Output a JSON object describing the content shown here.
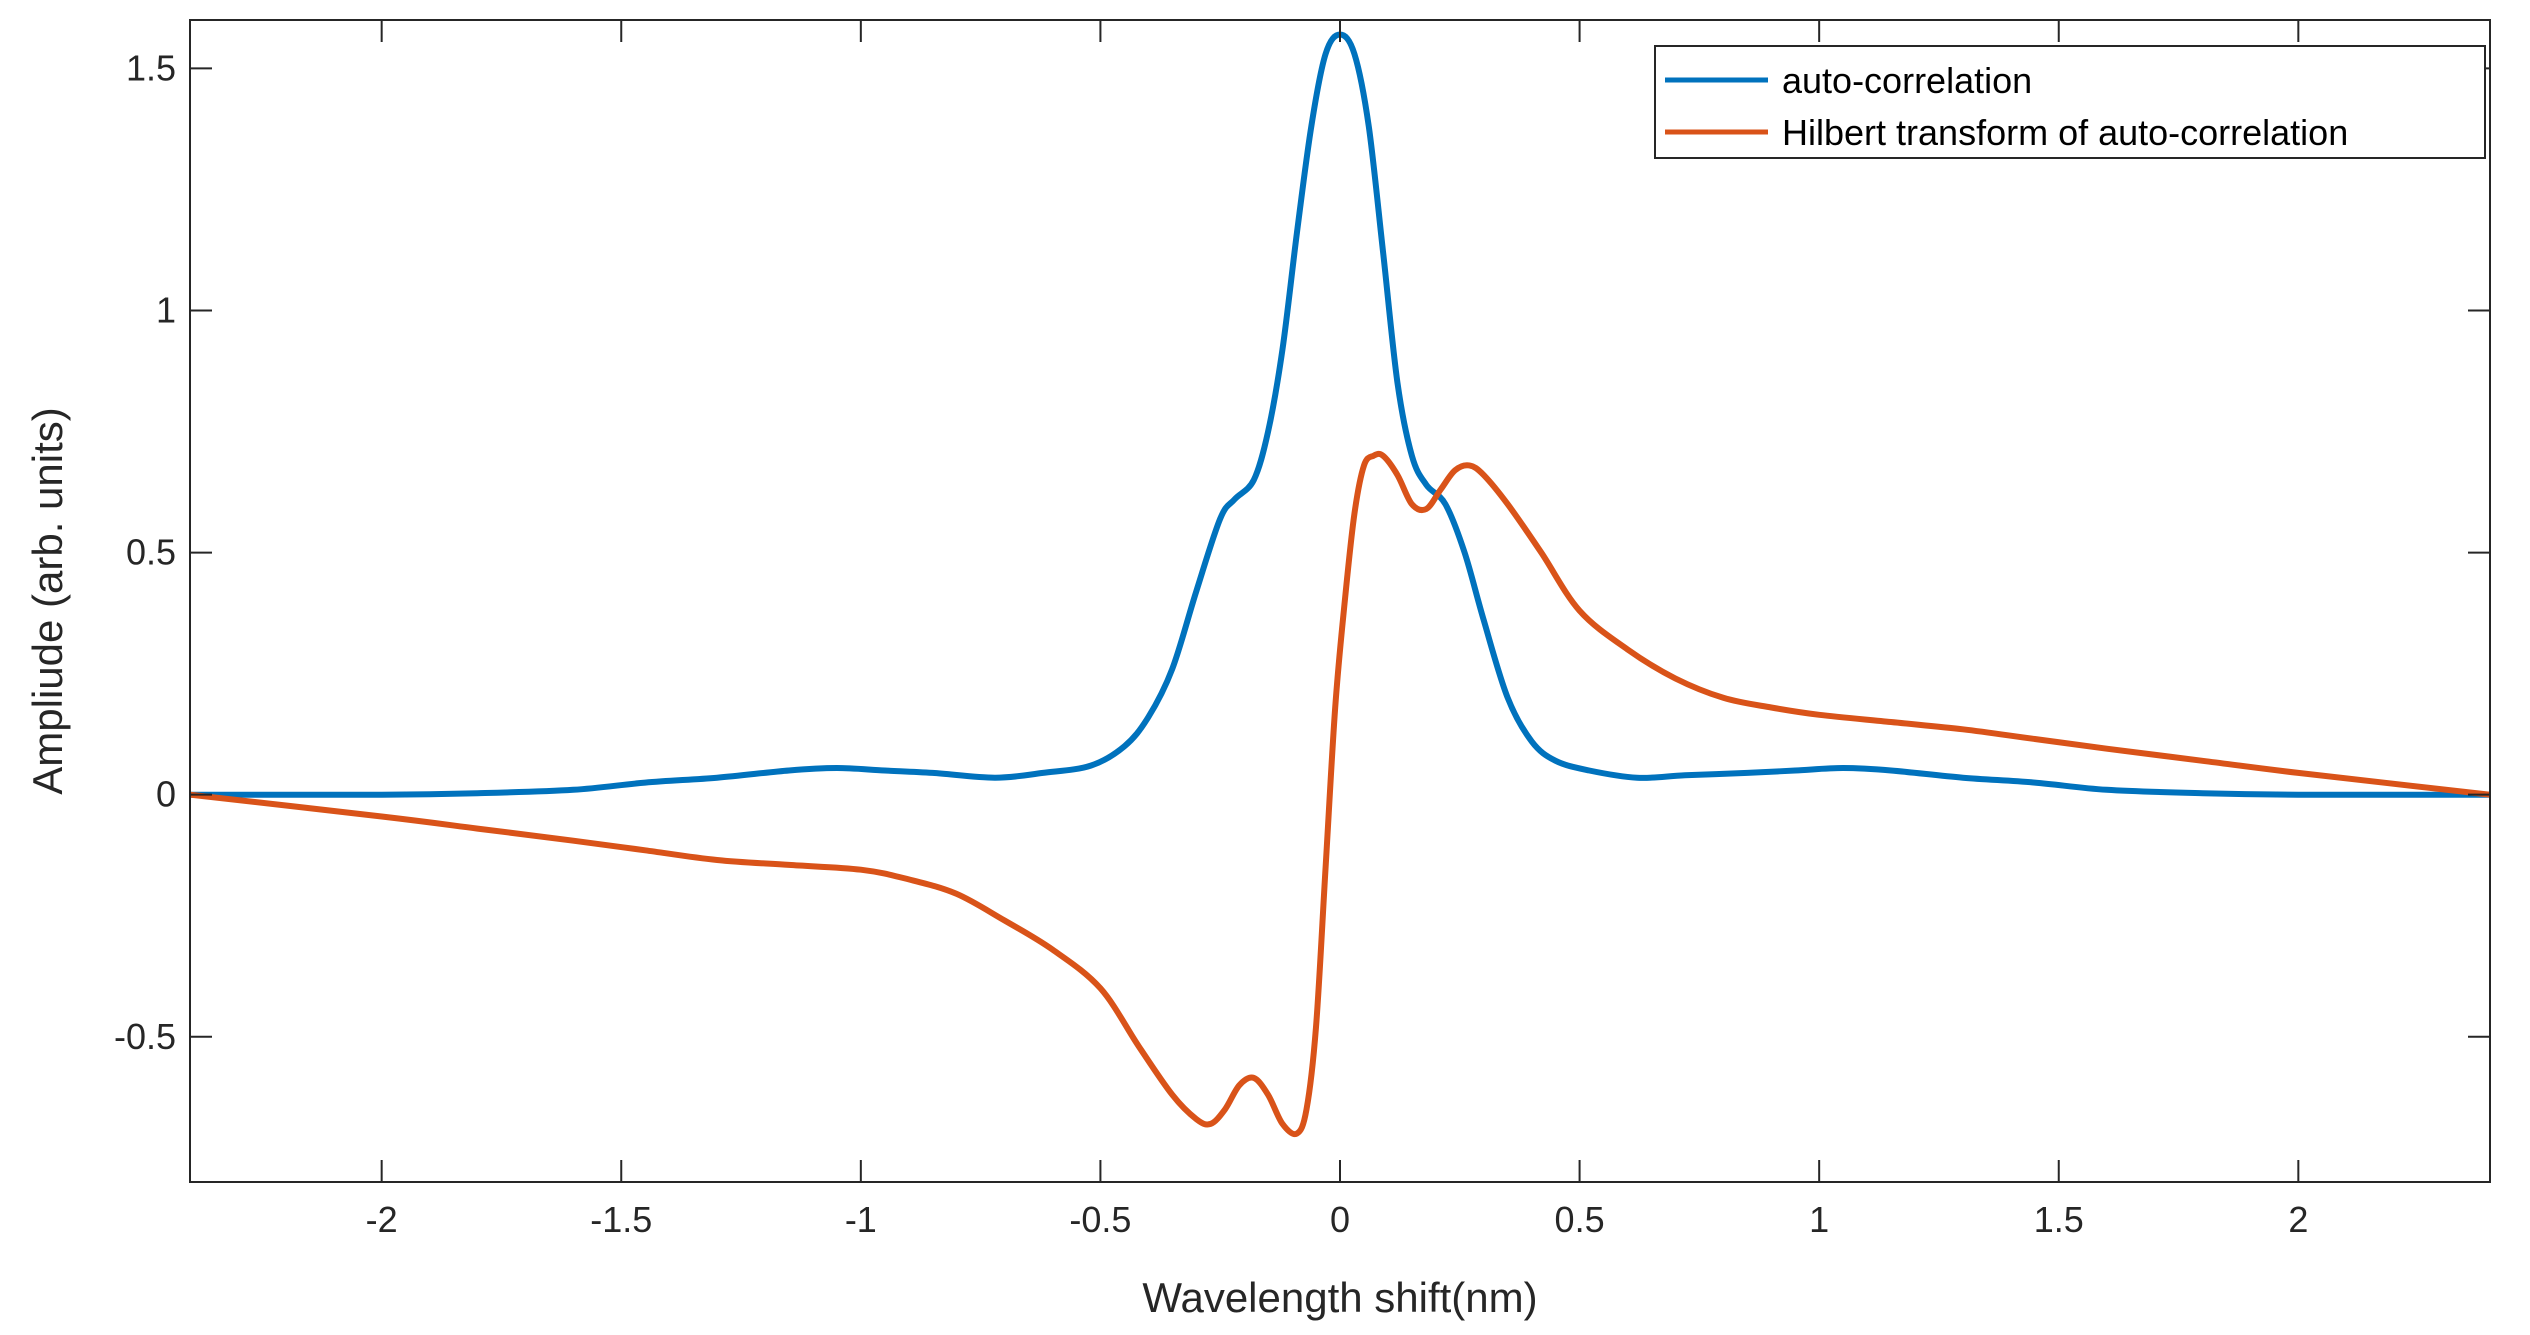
{
  "chart_data": {
    "type": "line",
    "title": "",
    "xlabel": "Wavelength shift(nm)",
    "ylabel": "Ampliude (arb. units)",
    "xlim": [
      -2.4,
      2.4
    ],
    "ylim": [
      -0.8,
      1.6
    ],
    "xticks": [
      -2,
      -1.5,
      -1,
      -0.5,
      0,
      0.5,
      1,
      1.5,
      2
    ],
    "xtick_labels": [
      "-2",
      "-1.5",
      "-1",
      "-0.5",
      "0",
      "0.5",
      "1",
      "1.5",
      "2"
    ],
    "yticks": [
      -0.5,
      0,
      0.5,
      1,
      1.5
    ],
    "ytick_labels": [
      "-0.5",
      "0",
      "0.5",
      "1",
      "1.5"
    ],
    "grid": false,
    "legend_position": "top-right",
    "series": [
      {
        "name": "auto-correlation",
        "color": "#0072BD",
        "x": [
          -2.4,
          -2.0,
          -1.8,
          -1.6,
          -1.45,
          -1.3,
          -1.15,
          -1.05,
          -0.95,
          -0.85,
          -0.72,
          -0.62,
          -0.52,
          -0.45,
          -0.4,
          -0.35,
          -0.3,
          -0.25,
          -0.22,
          -0.18,
          -0.15,
          -0.12,
          -0.09,
          -0.06,
          -0.03,
          0.0,
          0.03,
          0.06,
          0.09,
          0.12,
          0.15,
          0.18,
          0.22,
          0.26,
          0.3,
          0.35,
          0.4,
          0.45,
          0.52,
          0.62,
          0.72,
          0.85,
          0.95,
          1.05,
          1.15,
          1.3,
          1.45,
          1.6,
          1.8,
          2.0,
          2.4
        ],
        "y": [
          0.0,
          0.0,
          0.003,
          0.01,
          0.025,
          0.035,
          0.05,
          0.055,
          0.05,
          0.045,
          0.035,
          0.045,
          0.06,
          0.1,
          0.16,
          0.26,
          0.42,
          0.57,
          0.61,
          0.65,
          0.75,
          0.92,
          1.16,
          1.38,
          1.53,
          1.57,
          1.53,
          1.38,
          1.12,
          0.85,
          0.7,
          0.64,
          0.6,
          0.5,
          0.36,
          0.2,
          0.11,
          0.07,
          0.05,
          0.035,
          0.04,
          0.045,
          0.05,
          0.055,
          0.05,
          0.035,
          0.025,
          0.01,
          0.003,
          0.0,
          0.0
        ]
      },
      {
        "name": "Hilbert transform of auto-correlation",
        "color": "#D95319",
        "x": [
          -2.4,
          -2.0,
          -1.8,
          -1.6,
          -1.45,
          -1.3,
          -1.15,
          -1.0,
          -0.9,
          -0.8,
          -0.7,
          -0.6,
          -0.5,
          -0.42,
          -0.35,
          -0.3,
          -0.27,
          -0.24,
          -0.21,
          -0.18,
          -0.15,
          -0.12,
          -0.09,
          -0.07,
          -0.05,
          -0.03,
          -0.01,
          0.01,
          0.03,
          0.05,
          0.07,
          0.09,
          0.12,
          0.15,
          0.18,
          0.21,
          0.24,
          0.27,
          0.3,
          0.35,
          0.42,
          0.5,
          0.6,
          0.7,
          0.8,
          0.9,
          1.0,
          1.15,
          1.3,
          1.45,
          1.6,
          1.8,
          2.0,
          2.4
        ],
        "y": [
          0.0,
          -0.045,
          -0.07,
          -0.095,
          -0.115,
          -0.135,
          -0.145,
          -0.155,
          -0.175,
          -0.205,
          -0.26,
          -0.32,
          -0.4,
          -0.52,
          -0.62,
          -0.67,
          -0.68,
          -0.65,
          -0.6,
          -0.585,
          -0.62,
          -0.68,
          -0.7,
          -0.65,
          -0.48,
          -0.15,
          0.18,
          0.4,
          0.58,
          0.68,
          0.7,
          0.7,
          0.66,
          0.6,
          0.59,
          0.63,
          0.67,
          0.68,
          0.66,
          0.6,
          0.5,
          0.38,
          0.3,
          0.24,
          0.2,
          0.18,
          0.165,
          0.15,
          0.135,
          0.115,
          0.095,
          0.07,
          0.045,
          0.0
        ]
      }
    ]
  }
}
